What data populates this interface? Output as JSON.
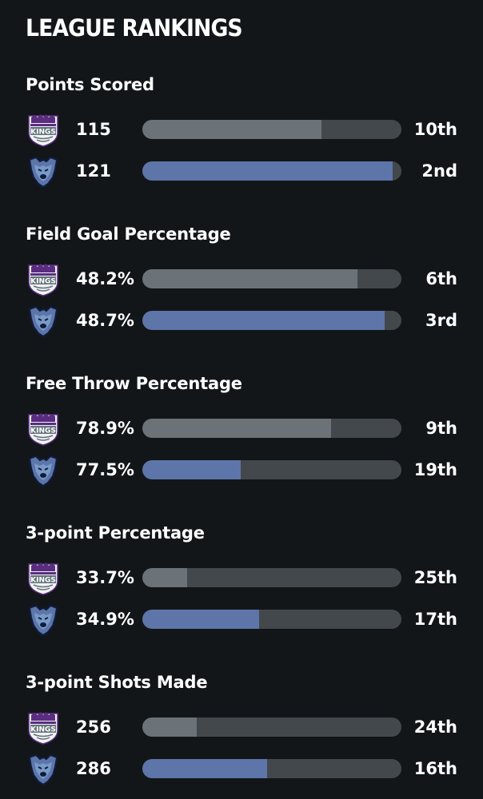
{
  "header": {
    "title": "LEAGUE RANKINGS"
  },
  "colors": {
    "background": "#131619",
    "kings_bar": "#6c7378",
    "grizzlies_bar": "#5d75a9",
    "track": "#43484d"
  },
  "teams": {
    "kings": {
      "logo_icon": "sacramento-kings-logo-icon",
      "logo_text": "KINGS"
    },
    "grizzlies": {
      "logo_icon": "memphis-grizzlies-logo-icon"
    }
  },
  "sections": [
    {
      "title": "Points Scored",
      "kings": {
        "value": "115",
        "rank": "10th",
        "fill_fraction": 0.69
      },
      "grizzlies": {
        "value": "121",
        "rank": "2nd",
        "fill_fraction": 0.966
      }
    },
    {
      "title": "Field Goal Percentage",
      "kings": {
        "value": "48.2%",
        "rank": "6th",
        "fill_fraction": 0.83
      },
      "grizzlies": {
        "value": "48.7%",
        "rank": "3rd",
        "fill_fraction": 0.935
      }
    },
    {
      "title": "Free Throw Percentage",
      "kings": {
        "value": "78.9%",
        "rank": "9th",
        "fill_fraction": 0.728
      },
      "grizzlies": {
        "value": "77.5%",
        "rank": "19th",
        "fill_fraction": 0.38
      }
    },
    {
      "title": "3-point Percentage",
      "kings": {
        "value": "33.7%",
        "rank": "25th",
        "fill_fraction": 0.173
      },
      "grizzlies": {
        "value": "34.9%",
        "rank": "17th",
        "fill_fraction": 0.45
      }
    },
    {
      "title": "3-point Shots Made",
      "kings": {
        "value": "256",
        "rank": "24th",
        "fill_fraction": 0.21
      },
      "grizzlies": {
        "value": "286",
        "rank": "16th",
        "fill_fraction": 0.48
      }
    }
  ]
}
